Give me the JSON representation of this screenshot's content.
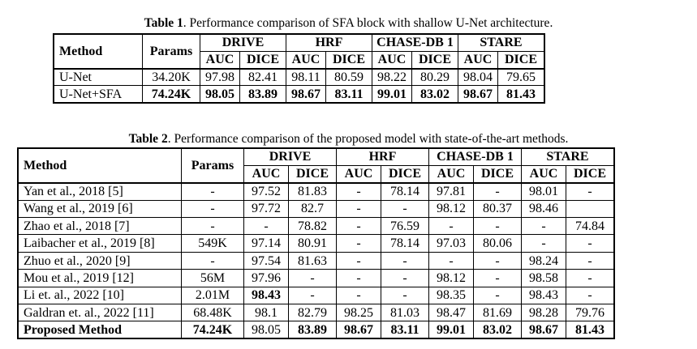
{
  "table1": {
    "label": "Table 1",
    "caption": ". Performance comparison of SFA block with shallow U-Net architecture.",
    "headers": {
      "method": "Method",
      "params": "Params",
      "datasets": [
        "DRIVE",
        "HRF",
        "CHASE-DB 1",
        "STARE"
      ],
      "metrics": [
        "AUC",
        "DICE",
        "AUC",
        "DICE",
        "AUC",
        "DICE",
        "AUC",
        "DICE"
      ]
    },
    "rows": [
      {
        "method": "U-Net",
        "params": "34.20K",
        "values": [
          "97.98",
          "82.41",
          "98.11",
          "80.59",
          "98.22",
          "80.29",
          "98.04",
          "79.65"
        ],
        "bold": false
      },
      {
        "method": "U-Net+SFA",
        "params": "74.24K",
        "values": [
          "98.05",
          "83.89",
          "98.67",
          "83.11",
          "99.01",
          "83.02",
          "98.67",
          "81.43"
        ],
        "bold": true
      }
    ]
  },
  "table2": {
    "label": "Table 2",
    "caption": ". Performance comparison of the proposed model with state-of-the-art methods.",
    "headers": {
      "method": "Method",
      "params": "Params",
      "datasets": [
        "DRIVE",
        "HRF",
        "CHASE-DB 1",
        "STARE"
      ],
      "metrics": [
        "AUC",
        "DICE",
        "AUC",
        "DICE",
        "AUC",
        "DICE",
        "AUC",
        "DICE"
      ]
    },
    "rows": [
      {
        "method": "Yan et al., 2018 [5]",
        "params": "-",
        "values": [
          "97.52",
          "81.83",
          "-",
          "78.14",
          "97.81",
          "-",
          "98.01",
          "-"
        ]
      },
      {
        "method": "Wang et al., 2019 [6]",
        "params": "-",
        "values": [
          "97.72",
          "82.7",
          "-",
          "-",
          "98.12",
          "80.37",
          "98.46",
          ""
        ]
      },
      {
        "method": "Zhao et al., 2018 [7]",
        "params": "-",
        "values": [
          "-",
          "78.82",
          "-",
          "76.59",
          "-",
          "-",
          "-",
          "74.84"
        ]
      },
      {
        "method": "Laibacher et al., 2019 [8]",
        "params": "549K",
        "values": [
          "97.14",
          "80.91",
          "-",
          "78.14",
          "97.03",
          "80.06",
          "-",
          "-"
        ]
      },
      {
        "method": "Zhuo et al., 2020 [9]",
        "params": "-",
        "values": [
          "97.54",
          "81.63",
          "-",
          "-",
          "-",
          "-",
          "98.24",
          "-"
        ]
      },
      {
        "method": "Mou et al., 2019 [12]",
        "params": "56M",
        "values": [
          "97.96",
          "-",
          "-",
          "-",
          "98.12",
          "-",
          "98.58",
          "-"
        ]
      },
      {
        "method": "Li et. al., 2022 [10]",
        "params": "2.01M",
        "values": [
          "98.43",
          "-",
          "-",
          "-",
          "98.35",
          "-",
          "98.43",
          "-"
        ]
      },
      {
        "method": "Galdran et. al., 2022 [11]",
        "params": "68.48K",
        "values": [
          "98.1",
          "82.79",
          "98.25",
          "81.03",
          "98.47",
          "81.69",
          "98.28",
          "79.76"
        ]
      },
      {
        "method": "Proposed Method",
        "params": "74.24K",
        "values": [
          "98.05",
          "83.89",
          "98.67",
          "83.11",
          "99.01",
          "83.02",
          "98.67",
          "81.43"
        ]
      }
    ]
  }
}
